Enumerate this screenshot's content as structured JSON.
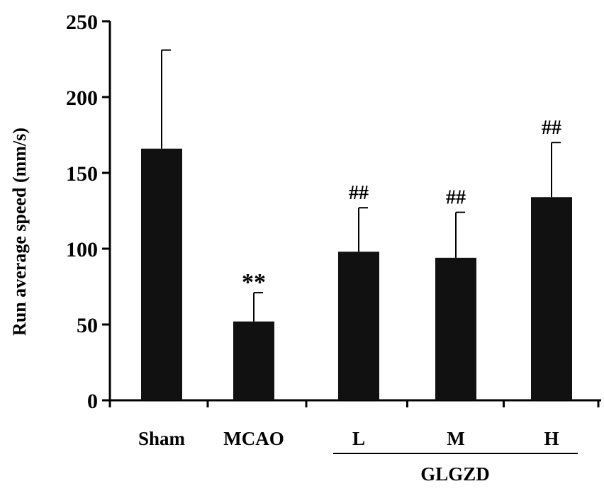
{
  "chart_data": {
    "type": "bar",
    "categories": [
      "Sham",
      "MCAO",
      "L",
      "M",
      "H"
    ],
    "values": [
      166,
      52,
      98,
      94,
      134
    ],
    "errors": [
      65,
      19,
      29,
      30,
      36
    ],
    "annotations": [
      "",
      "**",
      "##",
      "##",
      "##"
    ],
    "group": {
      "label": "GLGZD",
      "categories": [
        "L",
        "M",
        "H"
      ]
    },
    "ylabel": "Run average speed (mm/s)",
    "xlabel": "",
    "ylim": [
      0,
      250
    ],
    "yticks": [
      0,
      50,
      100,
      150,
      200,
      250
    ],
    "bar_color": "#111111",
    "grid": false
  }
}
